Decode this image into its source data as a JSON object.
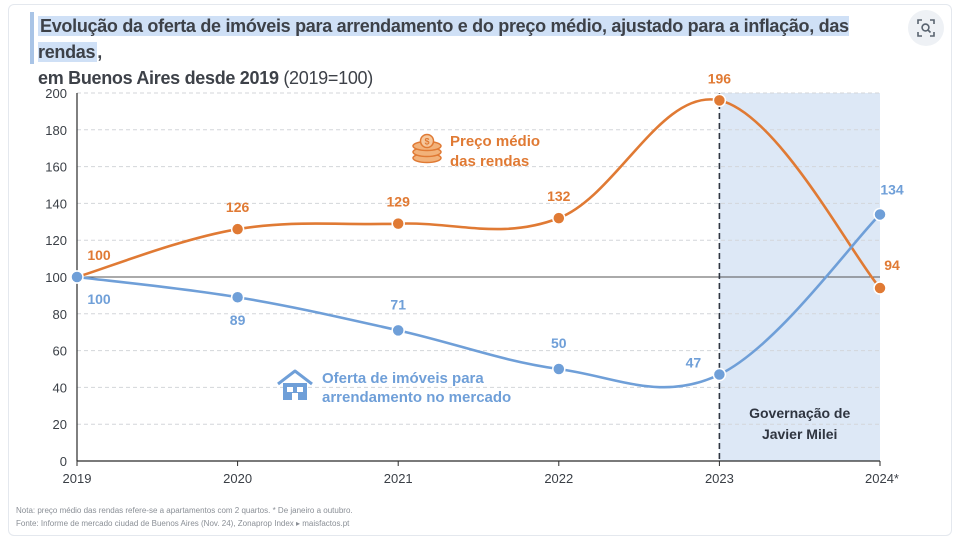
{
  "title": {
    "line1": "Evolução da oferta de imóveis para arrendamento e do preço médio, ajustado para a inflação, das rendas",
    "line1_suffix": ",",
    "line2": "em Buenos Aires desde 2019",
    "line2_suffix": "(2019=100)"
  },
  "icons": {
    "lens": "lens-icon",
    "coins": "coins-icon",
    "house": "house-icon"
  },
  "colors": {
    "orange": "#e07a34",
    "blue": "#6f9fd8",
    "shade": "#dde8f6",
    "grid": "#d3d6da",
    "axis": "#2b2b2b"
  },
  "chart_data": {
    "type": "line",
    "categories": [
      "2019",
      "2020",
      "2021",
      "2022",
      "2023",
      "2024*"
    ],
    "ylim": [
      0,
      200
    ],
    "yticks": [
      "0",
      "20",
      "40",
      "60",
      "80",
      "100",
      "120",
      "140",
      "160",
      "180",
      "200"
    ],
    "series": [
      {
        "name": "Preço médio das rendas",
        "legend_line1": "Preço médio",
        "legend_line2": "das rendas",
        "values": [
          100,
          126,
          129,
          132,
          196,
          94
        ],
        "labels": [
          "100",
          "126",
          "129",
          "132",
          "196",
          "94"
        ]
      },
      {
        "name": "Oferta de imóveis para arrendamento no mercado",
        "legend_line1": "Oferta de imóveis para",
        "legend_line2": "arrendamento no mercado",
        "values": [
          100,
          89,
          71,
          50,
          47,
          134
        ],
        "labels": [
          "100",
          "89",
          "71",
          "50",
          "47",
          "134"
        ]
      }
    ],
    "shaded_region": {
      "from": "2023",
      "to": "2024*",
      "label_line1": "Governação de",
      "label_line2": "Javier Milei"
    }
  },
  "notes": {
    "line1": "Nota: preço médio das rendas refere-se a apartamentos com 2 quartos. * De janeiro a outubro.",
    "line2": "Fonte: Informe de mercado ciudad de Buenos Aires (Nov. 24), Zonaprop Index ▸ maisfactos.pt"
  }
}
